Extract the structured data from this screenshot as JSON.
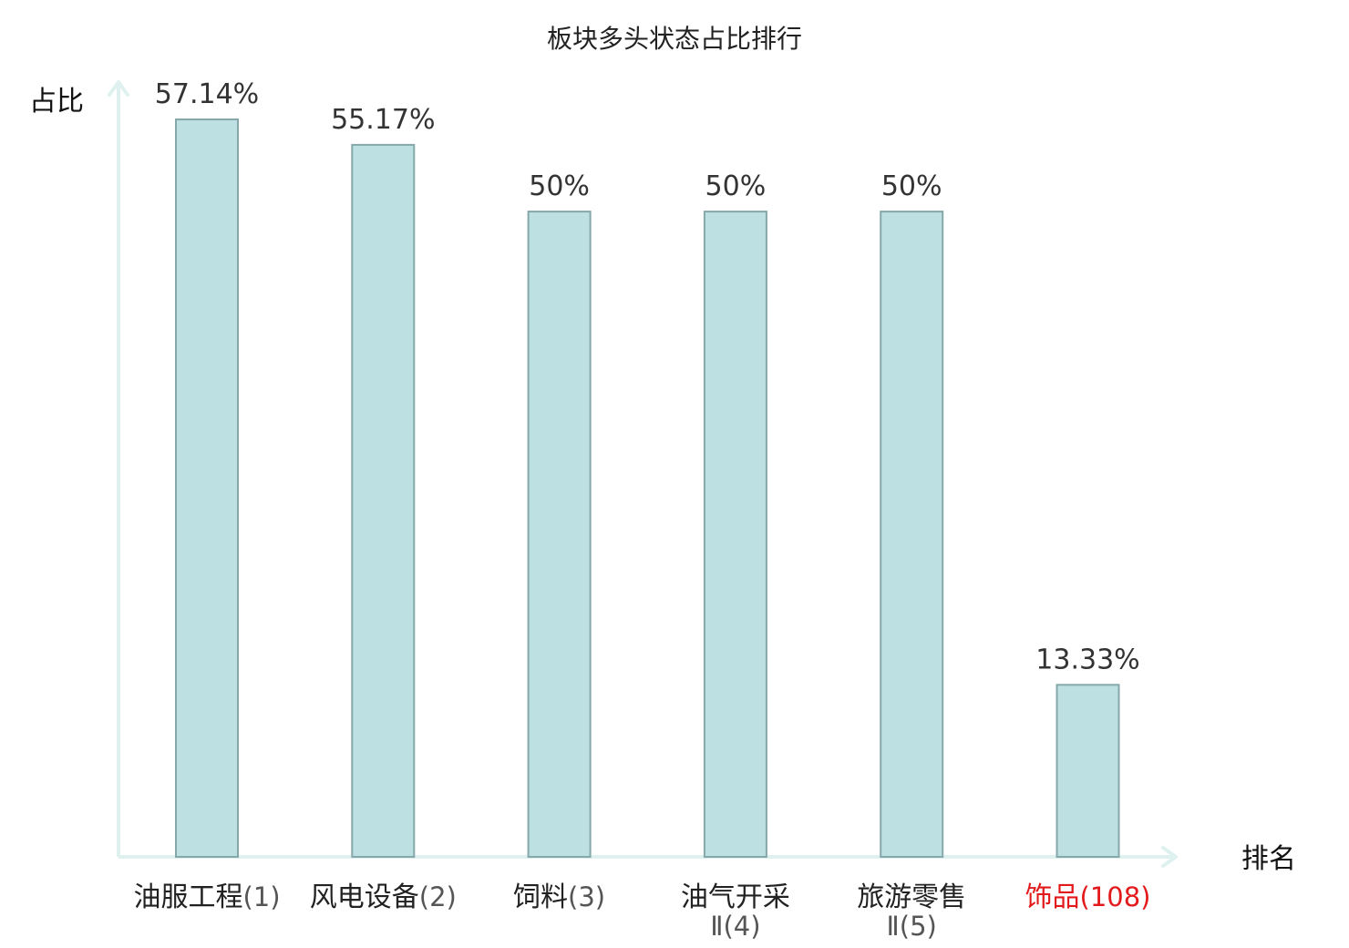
{
  "chart_data": {
    "type": "bar",
    "title": "板块多头状态占比排行",
    "xlabel": "排名",
    "ylabel": "占比",
    "ylim": [
      0,
      60
    ],
    "grid": false,
    "legend": "none",
    "categories": [
      {
        "name": "油服工程",
        "name_lines": [
          "油服工程"
        ],
        "rank": "(1)",
        "highlight": false
      },
      {
        "name": "风电设备",
        "name_lines": [
          "风电设备"
        ],
        "rank": "(2)",
        "highlight": false
      },
      {
        "name": "饲料",
        "name_lines": [
          "饲料"
        ],
        "rank": "(3)",
        "highlight": false
      },
      {
        "name": "油气开采Ⅱ",
        "name_lines": [
          "油气开采",
          "Ⅱ"
        ],
        "rank": "(4)",
        "highlight": false
      },
      {
        "name": "旅游零售Ⅱ",
        "name_lines": [
          "旅游零售",
          "Ⅱ"
        ],
        "rank": "(5)",
        "highlight": false
      },
      {
        "name": "饰品",
        "name_lines": [
          "饰品"
        ],
        "rank": "(108)",
        "highlight": true
      }
    ],
    "values": [
      57.14,
      55.17,
      50,
      50,
      50,
      13.33
    ],
    "value_labels": [
      "57.14%",
      "55.17%",
      "50%",
      "50%",
      "50%",
      "13.33%"
    ]
  },
  "colors": {
    "bar_fill": "#bde0e3",
    "bar_stroke": "#86a8ab",
    "axis": "#dff1ee",
    "label_normal_name": "#222222",
    "label_normal_rank": "#555555",
    "label_highlight": "#e31a1c",
    "value_text": "#333333"
  }
}
